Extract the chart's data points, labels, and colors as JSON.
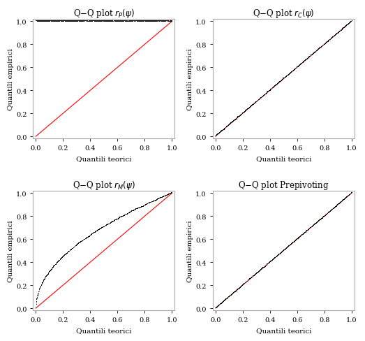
{
  "xlabel": "Quantili teorici",
  "ylabel": "Quantili empirici",
  "n_points": 1000,
  "xlim": [
    -0.02,
    1.02
  ],
  "ylim": [
    -0.02,
    1.02
  ],
  "xticks": [
    0.0,
    0.2,
    0.4,
    0.6,
    0.8,
    1.0
  ],
  "yticks": [
    0.0,
    0.2,
    0.4,
    0.6,
    0.8,
    1.0
  ],
  "line_color": "red",
  "point_color": "black",
  "point_size": 0.5,
  "background_color": "#ffffff",
  "figsize": [
    5.23,
    4.89
  ],
  "dpi": 100,
  "spine_color": "#aaaaaa",
  "title_fontsize": 8.5,
  "label_fontsize": 7.5,
  "tick_fontsize": 7
}
